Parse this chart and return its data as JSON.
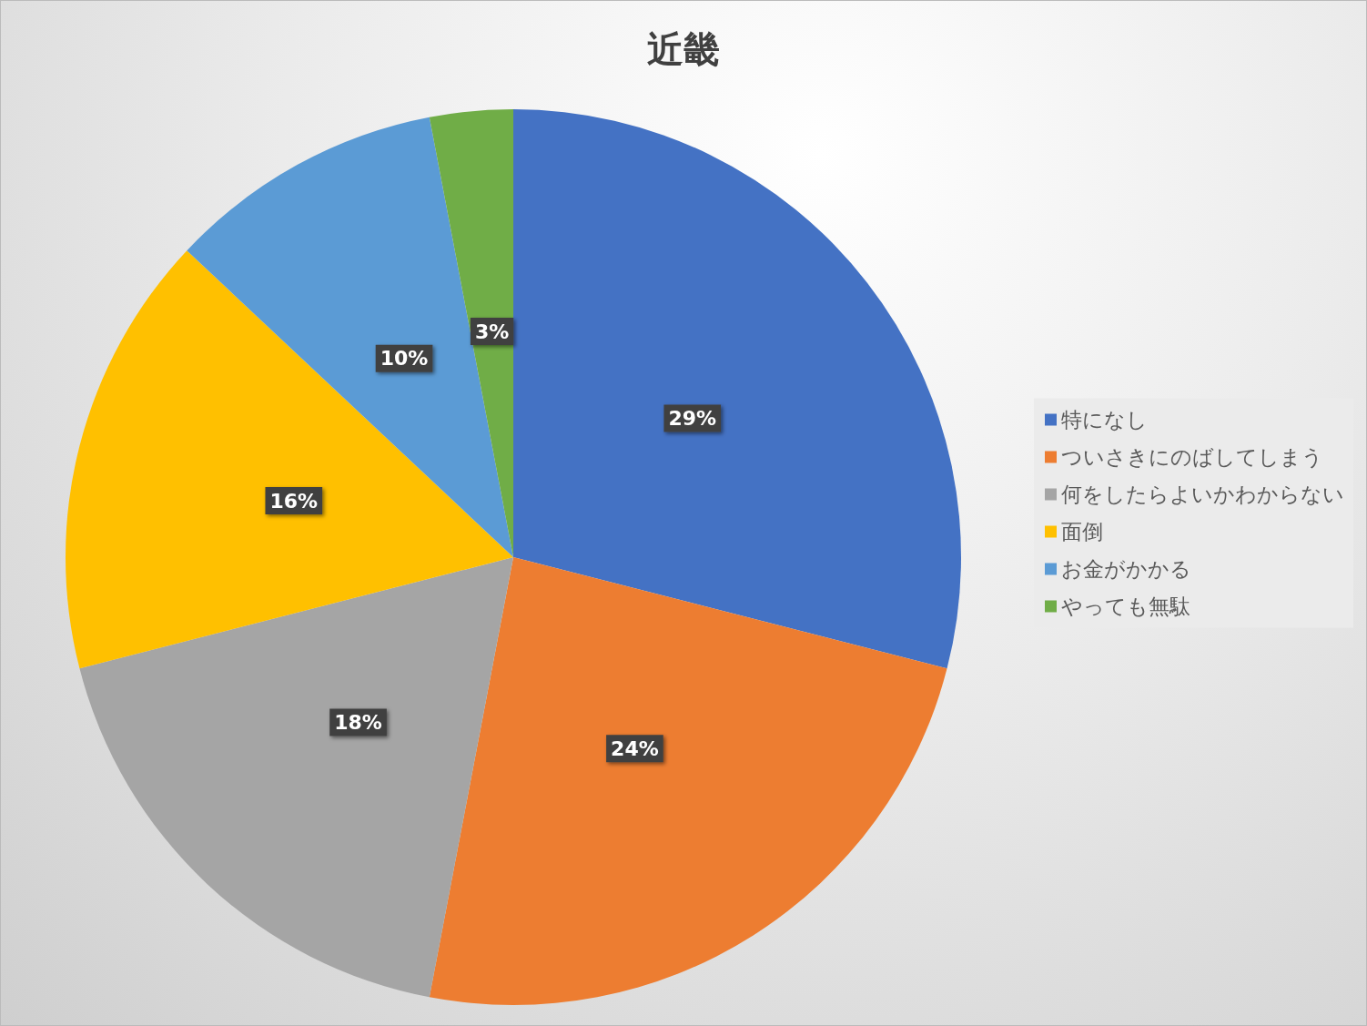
{
  "chart_data": {
    "type": "pie",
    "title": "近畿",
    "categories": [
      "特になし",
      "ついさきにのばしてしまう",
      "何をしたらよいかわからない",
      "面倒",
      "お金がかかる",
      "やっても無駄"
    ],
    "values": [
      29,
      24,
      18,
      16,
      10,
      3
    ],
    "value_labels": [
      "29%",
      "24%",
      "18%",
      "16%",
      "10%",
      "3%"
    ],
    "colors": [
      "#4472c4",
      "#ed7d31",
      "#a5a5a5",
      "#ffc000",
      "#5b9bd5",
      "#70ad47"
    ],
    "legend": "right"
  }
}
